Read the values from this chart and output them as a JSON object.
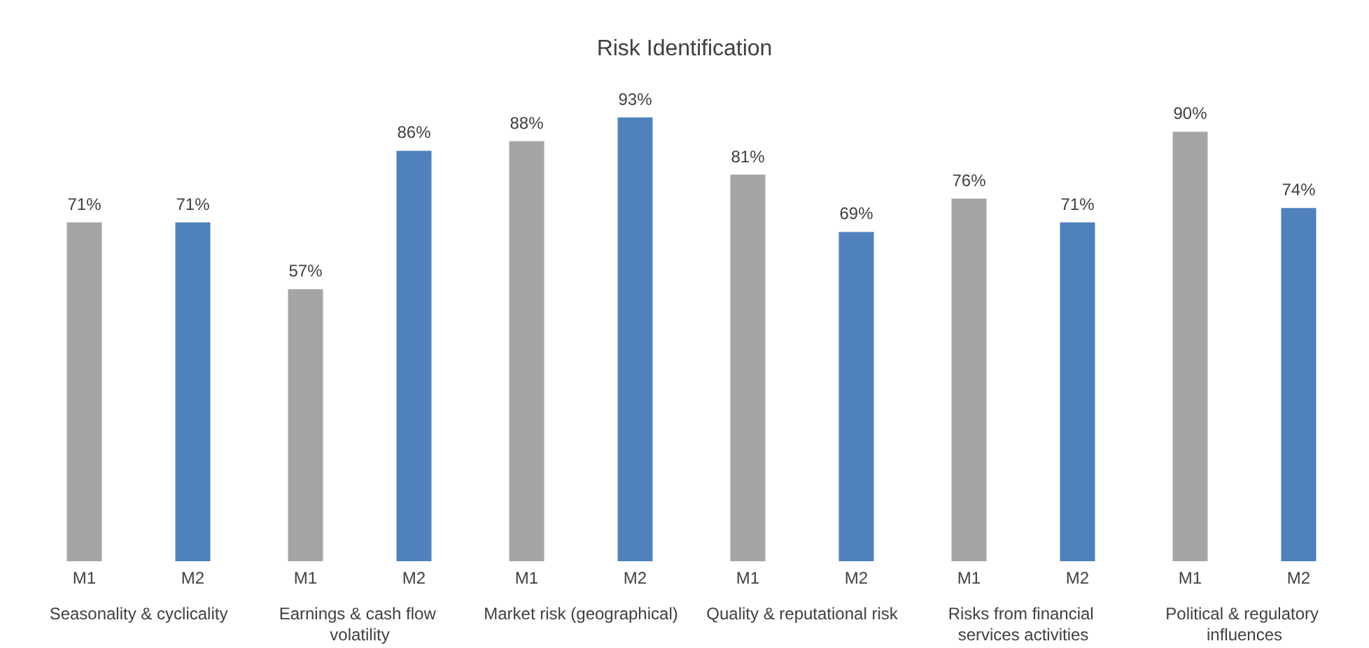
{
  "chart_data": {
    "type": "bar",
    "title": "Risk Identification",
    "categories": [
      "Seasonality & cyclicality",
      "Earnings & cash flow volatility",
      "Market risk (geographical)",
      "Quality & reputational risk",
      "Risks from financial services activities",
      "Political & regulatory influences"
    ],
    "series": [
      {
        "name": "M1",
        "color": "#a5a5a5",
        "values": [
          71,
          57,
          88,
          81,
          76,
          90
        ],
        "value_labels": [
          "71%",
          "57%",
          "88%",
          "81%",
          "76%",
          "90%"
        ]
      },
      {
        "name": "M2",
        "color": "#4f81bd",
        "values": [
          71,
          86,
          93,
          69,
          71,
          74
        ],
        "value_labels": [
          "71%",
          "86%",
          "93%",
          "69%",
          "71%",
          "74%"
        ]
      }
    ],
    "grid": false,
    "legend": false
  }
}
